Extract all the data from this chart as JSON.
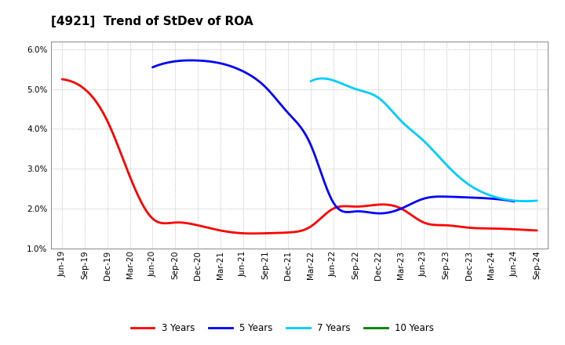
{
  "title": "[4921]  Trend of StDev of ROA",
  "x_labels": [
    "Jun-19",
    "Sep-19",
    "Dec-19",
    "Mar-20",
    "Jun-20",
    "Sep-20",
    "Dec-20",
    "Mar-21",
    "Jun-21",
    "Sep-21",
    "Dec-21",
    "Mar-22",
    "Jun-22",
    "Sep-22",
    "Dec-22",
    "Mar-23",
    "Jun-23",
    "Sep-23",
    "Dec-23",
    "Mar-24",
    "Jun-24",
    "Sep-24"
  ],
  "ylim": [
    0.01,
    0.062
  ],
  "yticks": [
    0.01,
    0.02,
    0.03,
    0.04,
    0.05,
    0.06
  ],
  "series": {
    "3 Years": {
      "color": "#ff0000",
      "data_x": [
        0,
        1,
        2,
        3,
        4,
        5,
        6,
        7,
        8,
        9,
        10,
        11,
        12,
        13,
        14,
        15,
        16,
        17,
        18,
        19,
        20,
        21
      ],
      "data_y": [
        0.0525,
        0.05,
        0.042,
        0.028,
        0.0175,
        0.0165,
        0.0158,
        0.0145,
        0.0138,
        0.0138,
        0.014,
        0.0155,
        0.02,
        0.0205,
        0.021,
        0.02,
        0.0165,
        0.0158,
        0.0152,
        0.015,
        0.0148,
        0.0145
      ]
    },
    "5 Years": {
      "color": "#0000ff",
      "data_x": [
        4,
        5,
        6,
        7,
        8,
        9,
        10,
        11,
        12,
        13,
        14,
        15,
        16,
        17,
        18,
        19,
        20
      ],
      "data_y": [
        0.0555,
        0.057,
        0.0572,
        0.0565,
        0.0545,
        0.0505,
        0.044,
        0.036,
        0.0215,
        0.0193,
        0.0188,
        0.02,
        0.0225,
        0.023,
        0.0228,
        0.0225,
        0.0218
      ]
    },
    "7 Years": {
      "color": "#00ccff",
      "data_x": [
        11,
        12,
        13,
        14,
        15,
        16,
        17,
        18,
        19,
        20,
        21
      ],
      "data_y": [
        0.052,
        0.0522,
        0.05,
        0.0478,
        0.042,
        0.037,
        0.031,
        0.026,
        0.0232,
        0.022,
        0.022
      ]
    },
    "10 Years": {
      "color": "#008000",
      "data_x": [],
      "data_y": []
    }
  },
  "legend_labels": [
    "3 Years",
    "5 Years",
    "7 Years",
    "10 Years"
  ],
  "legend_colors": [
    "#ff0000",
    "#0000ff",
    "#00ccff",
    "#008000"
  ],
  "bg_color": "#ffffff",
  "grid_color": "#aaaaaa",
  "title_fontsize": 11,
  "tick_fontsize": 7.5,
  "line_width": 2.0
}
